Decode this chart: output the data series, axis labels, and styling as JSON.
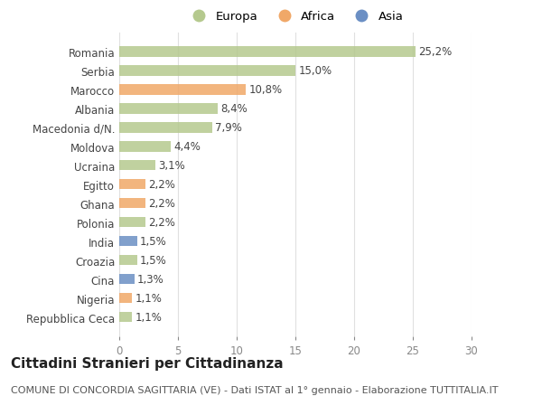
{
  "categories": [
    "Repubblica Ceca",
    "Nigeria",
    "Cina",
    "Croazia",
    "India",
    "Polonia",
    "Ghana",
    "Egitto",
    "Ucraina",
    "Moldova",
    "Macedonia d/N.",
    "Albania",
    "Marocco",
    "Serbia",
    "Romania"
  ],
  "values": [
    1.1,
    1.1,
    1.3,
    1.5,
    1.5,
    2.2,
    2.2,
    2.2,
    3.1,
    4.4,
    7.9,
    8.4,
    10.8,
    15.0,
    25.2
  ],
  "labels": [
    "1,1%",
    "1,1%",
    "1,3%",
    "1,5%",
    "1,5%",
    "2,2%",
    "2,2%",
    "2,2%",
    "3,1%",
    "4,4%",
    "7,9%",
    "8,4%",
    "10,8%",
    "15,0%",
    "25,2%"
  ],
  "colors": [
    "#b5c98e",
    "#f0a868",
    "#6b8fc4",
    "#b5c98e",
    "#6b8fc4",
    "#b5c98e",
    "#f0a868",
    "#f0a868",
    "#b5c98e",
    "#b5c98e",
    "#b5c98e",
    "#b5c98e",
    "#f0a868",
    "#b5c98e",
    "#b5c98e"
  ],
  "legend_labels": [
    "Europa",
    "Africa",
    "Asia"
  ],
  "legend_colors": [
    "#b5c98e",
    "#f0a868",
    "#6b8fc4"
  ],
  "title": "Cittadini Stranieri per Cittadinanza",
  "subtitle": "COMUNE DI CONCORDIA SAGITTARIA (VE) - Dati ISTAT al 1° gennaio - Elaborazione TUTTITALIA.IT",
  "xlim": [
    0,
    30
  ],
  "xticks": [
    0,
    5,
    10,
    15,
    20,
    25,
    30
  ],
  "background_color": "#ffffff",
  "plot_bg_color": "#ffffff",
  "grid_color": "#e0e0e0",
  "bar_height": 0.55,
  "label_fontsize": 8.5,
  "title_fontsize": 11,
  "subtitle_fontsize": 8
}
